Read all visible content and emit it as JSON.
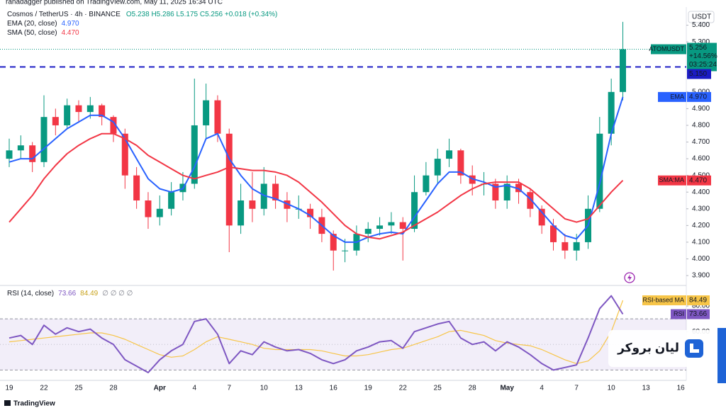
{
  "header": {
    "attribution": "ranadagger published on TradingView.com, May 11, 2025 16:34 UTC",
    "symbol": "Cosmos / TetherUS · 4h · BINANCE",
    "ohlc": "O5.238 H5.286 L5.175 C5.256 +0.018 (+0.34%)",
    "ema_legend": "EMA (20, close)",
    "ema_value": "4.970",
    "sma_legend": "SMA (50, close)",
    "sma_value": "4.470",
    "currency": "USDT"
  },
  "chart_data": [
    {
      "type": "candlestick",
      "categories": [
        "19",
        null,
        null,
        "22",
        null,
        null,
        "25",
        null,
        null,
        "28",
        null,
        null,
        null,
        "Apr",
        null,
        null,
        "4",
        null,
        null,
        "7",
        null,
        null,
        "10",
        null,
        null,
        "13",
        null,
        null,
        "16",
        null,
        null,
        "19",
        null,
        null,
        "22",
        null,
        null,
        "25",
        null,
        null,
        "28",
        null,
        null,
        "May",
        null,
        null,
        "4",
        null,
        null,
        "7",
        null,
        null,
        "10",
        null,
        null,
        "13",
        null,
        null,
        "16"
      ],
      "open": [
        4.6,
        4.65,
        4.68,
        4.58,
        4.85,
        4.8,
        4.92,
        4.88,
        4.92,
        4.85,
        4.75,
        4.5,
        4.35,
        4.25,
        4.3,
        4.4,
        4.45,
        4.8,
        4.95,
        4.75,
        4.2,
        4.35,
        4.3,
        4.45,
        4.35,
        4.3,
        4.3,
        4.25,
        4.15,
        4.05,
        4.05,
        4.15,
        4.18,
        4.2,
        4.22,
        4.18,
        4.4,
        4.5,
        4.6,
        4.65,
        4.5,
        4.45,
        4.45,
        4.35,
        4.45,
        4.4,
        4.3,
        4.2,
        4.1,
        4.05,
        4.1,
        4.3,
        4.75,
        5.0,
        null,
        null,
        null,
        null,
        null
      ],
      "high": [
        4.72,
        4.74,
        4.7,
        4.98,
        4.9,
        4.96,
        4.95,
        4.97,
        4.93,
        4.86,
        4.78,
        4.55,
        4.4,
        4.38,
        4.46,
        4.52,
        5.08,
        5.05,
        4.98,
        4.78,
        4.45,
        4.52,
        4.55,
        4.5,
        4.4,
        4.38,
        4.33,
        4.3,
        4.17,
        4.12,
        4.2,
        4.22,
        4.25,
        4.28,
        4.25,
        4.5,
        4.58,
        4.66,
        4.72,
        4.66,
        4.56,
        4.52,
        4.48,
        4.5,
        4.48,
        4.42,
        4.32,
        4.24,
        4.15,
        4.15,
        4.38,
        4.85,
        5.08,
        5.42,
        null,
        null,
        null,
        null,
        null
      ],
      "low": [
        4.55,
        4.6,
        4.52,
        4.55,
        4.74,
        4.78,
        4.82,
        4.84,
        4.8,
        4.7,
        4.42,
        4.3,
        4.18,
        4.2,
        4.26,
        4.35,
        4.42,
        4.72,
        4.7,
        4.04,
        4.15,
        4.22,
        4.26,
        4.3,
        4.22,
        4.24,
        4.18,
        4.1,
        3.93,
        3.98,
        4.02,
        4.1,
        4.14,
        4.15,
        3.99,
        4.16,
        4.38,
        4.45,
        4.55,
        4.45,
        4.38,
        4.38,
        4.3,
        4.3,
        4.33,
        4.25,
        4.15,
        4.05,
        4.0,
        3.99,
        4.06,
        4.28,
        4.68,
        4.95,
        null,
        null,
        null,
        null,
        null
      ],
      "close": [
        4.65,
        4.68,
        4.58,
        4.85,
        4.8,
        4.92,
        4.88,
        4.92,
        4.85,
        4.75,
        4.5,
        4.35,
        4.25,
        4.3,
        4.4,
        4.45,
        4.8,
        4.95,
        4.75,
        4.2,
        4.35,
        4.3,
        4.45,
        4.35,
        4.3,
        4.3,
        4.25,
        4.15,
        4.05,
        4.05,
        4.15,
        4.18,
        4.2,
        4.22,
        4.18,
        4.4,
        4.5,
        4.6,
        4.65,
        4.5,
        4.45,
        4.45,
        4.35,
        4.45,
        4.4,
        4.3,
        4.2,
        4.1,
        4.05,
        4.1,
        4.3,
        4.75,
        5.0,
        5.256,
        null,
        null,
        null,
        null,
        null
      ],
      "up_color": "#089981",
      "down_color": "#f23645",
      "series": [
        {
          "name": "EMA",
          "color": "#2962ff",
          "last_label": "4.970",
          "values": [
            4.58,
            4.6,
            4.6,
            4.66,
            4.72,
            4.78,
            4.82,
            4.86,
            4.86,
            4.82,
            4.72,
            4.6,
            4.48,
            4.42,
            4.4,
            4.42,
            4.55,
            4.72,
            4.75,
            4.6,
            4.5,
            4.42,
            4.38,
            4.36,
            4.33,
            4.3,
            4.26,
            4.2,
            4.14,
            4.1,
            4.1,
            4.13,
            4.15,
            4.16,
            4.15,
            4.25,
            4.35,
            4.45,
            4.52,
            4.52,
            4.48,
            4.46,
            4.43,
            4.44,
            4.42,
            4.36,
            4.28,
            4.2,
            4.14,
            4.12,
            4.2,
            4.45,
            4.75,
            4.97,
            null,
            null,
            null,
            null,
            null
          ]
        },
        {
          "name": "SMA:MA",
          "color": "#f23645",
          "last_label": "4.470",
          "values": [
            4.22,
            4.3,
            4.38,
            4.48,
            4.56,
            4.63,
            4.68,
            4.72,
            4.75,
            4.75,
            4.72,
            4.68,
            4.62,
            4.58,
            4.54,
            4.5,
            4.48,
            4.5,
            4.52,
            4.55,
            4.54,
            4.53,
            4.53,
            4.52,
            4.5,
            4.46,
            4.4,
            4.34,
            4.27,
            4.2,
            4.15,
            4.13,
            4.12,
            4.14,
            4.16,
            4.2,
            4.24,
            4.28,
            4.33,
            4.38,
            4.42,
            4.45,
            4.46,
            4.46,
            4.46,
            4.42,
            4.36,
            4.3,
            4.24,
            4.22,
            4.24,
            4.32,
            4.4,
            4.47,
            null,
            null,
            null,
            null,
            null
          ]
        }
      ],
      "ylim": [
        3.845,
        5.5
      ],
      "yticks": [
        {
          "value": 3.9,
          "label": "3.900"
        },
        {
          "value": 4.0,
          "label": "4.000"
        },
        {
          "value": 4.1,
          "label": "4.100"
        },
        {
          "value": 4.2,
          "label": "4.200"
        },
        {
          "value": 4.3,
          "label": "4.300"
        },
        {
          "value": 4.4,
          "label": "4.400"
        },
        {
          "value": 4.5,
          "label": "4.500"
        },
        {
          "value": 4.6,
          "label": "4.600"
        },
        {
          "value": 4.7,
          "label": "4.700"
        },
        {
          "value": 4.8,
          "label": "4.800"
        },
        {
          "value": 4.9,
          "label": "4.900"
        },
        {
          "value": 5.0,
          "label": "5.000"
        },
        {
          "value": 5.3,
          "label": "5.300"
        },
        {
          "value": 5.4,
          "label": "5.400"
        }
      ],
      "hline": {
        "value": 5.15,
        "label": "5.150",
        "color": "#1b1bc4"
      },
      "price_tag": {
        "symbol": "ATOMUSDT",
        "change": "+14.56%",
        "countdown": "03:25:24"
      },
      "grid": false
    },
    {
      "type": "line",
      "title": "RSI (14, close)",
      "legend_extra": "∅ ∅ ∅ ∅",
      "series": [
        {
          "name": "RSI",
          "color": "#7e57c2",
          "last_label": "73.66",
          "values": [
            55,
            57,
            50,
            65,
            58,
            63,
            60,
            62,
            55,
            50,
            38,
            33,
            28,
            38,
            45,
            50,
            68,
            70,
            58,
            35,
            45,
            42,
            52,
            48,
            45,
            46,
            43,
            38,
            35,
            38,
            45,
            48,
            52,
            53,
            47,
            60,
            63,
            66,
            68,
            55,
            50,
            52,
            45,
            52,
            48,
            42,
            35,
            30,
            32,
            34,
            55,
            78,
            88,
            73.66,
            null,
            null,
            null,
            null,
            null
          ]
        },
        {
          "name": "RSI-based MA",
          "color": "#f7c548",
          "last_label": "84.49",
          "values": [
            52,
            53,
            54,
            55,
            56,
            57,
            58,
            59,
            59,
            57,
            54,
            50,
            46,
            42,
            40,
            41,
            46,
            52,
            56,
            54,
            52,
            50,
            47,
            46,
            46,
            46,
            46,
            45,
            43,
            41,
            41,
            42,
            44,
            46,
            47,
            50,
            53,
            56,
            60,
            61,
            59,
            57,
            53,
            51,
            50,
            49,
            46,
            42,
            38,
            35,
            37,
            45,
            60,
            84.49,
            null,
            null,
            null,
            null,
            null
          ]
        }
      ],
      "ylim": [
        23,
        95
      ],
      "yticks": [
        {
          "value": 80,
          "label": "80.00"
        },
        {
          "value": 60,
          "label": "60.00"
        }
      ],
      "levels": [
        70,
        50,
        30
      ],
      "band_fill": "#7e57c2"
    }
  ],
  "branding": {
    "logo_text": "لیان بروکر",
    "footer": "TradingView"
  }
}
